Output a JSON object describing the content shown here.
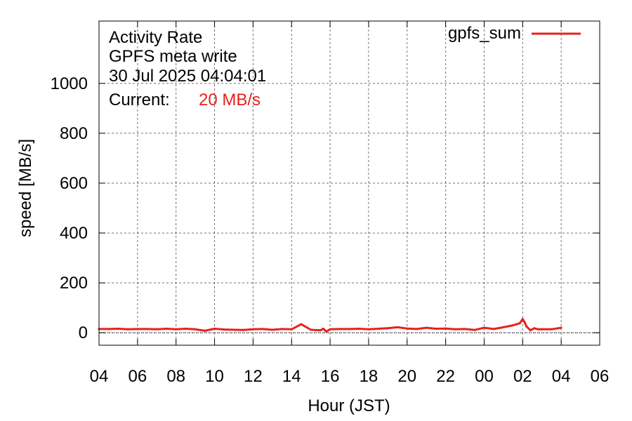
{
  "chart_data": {
    "type": "line",
    "title_lines": [
      "Activity Rate",
      "GPFS meta write",
      "30 Jul 2025 04:04:01"
    ],
    "current_label": "Current:",
    "current_value": "20 MB/s",
    "xlabel": "Hour (JST)",
    "ylabel": "speed [MB/s]",
    "x_tick_labels": [
      "04",
      "06",
      "08",
      "10",
      "12",
      "14",
      "16",
      "18",
      "20",
      "22",
      "00",
      "02",
      "04",
      "06"
    ],
    "xlim_hours": [
      0,
      26
    ],
    "ylim": [
      -50,
      1250
    ],
    "y_ticks": [
      0,
      200,
      400,
      600,
      800,
      1000
    ],
    "grid": true,
    "legend_position": "top-right",
    "series": [
      {
        "name": "gpfs_sum",
        "color": "#e8211b",
        "x": [
          0,
          0.5,
          1,
          1.5,
          2,
          2.5,
          3,
          3.5,
          4,
          4.5,
          5,
          5.5,
          6,
          6.5,
          7,
          7.5,
          8,
          8.5,
          9,
          9.5,
          10,
          10.5,
          11,
          11.5,
          11.65,
          11.8,
          12,
          12.5,
          13,
          13.5,
          14,
          14.5,
          15,
          15.5,
          16,
          16.5,
          17,
          17.5,
          18,
          18.5,
          19,
          19.5,
          20,
          20.5,
          21,
          21.5,
          21.85,
          22,
          22.1,
          22.2,
          22.4,
          22.6,
          22.8,
          23,
          23.5,
          24
        ],
        "y": [
          15,
          15,
          16,
          14,
          15,
          15,
          14,
          16,
          14,
          16,
          14,
          8,
          16,
          13,
          12,
          11,
          14,
          15,
          12,
          15,
          14,
          34,
          12,
          10,
          16,
          5,
          14,
          15,
          15,
          16,
          14,
          16,
          18,
          22,
          17,
          15,
          20,
          16,
          17,
          14,
          15,
          11,
          20,
          15,
          22,
          30,
          38,
          55,
          42,
          25,
          10,
          18,
          14,
          14,
          14,
          20
        ]
      }
    ]
  }
}
